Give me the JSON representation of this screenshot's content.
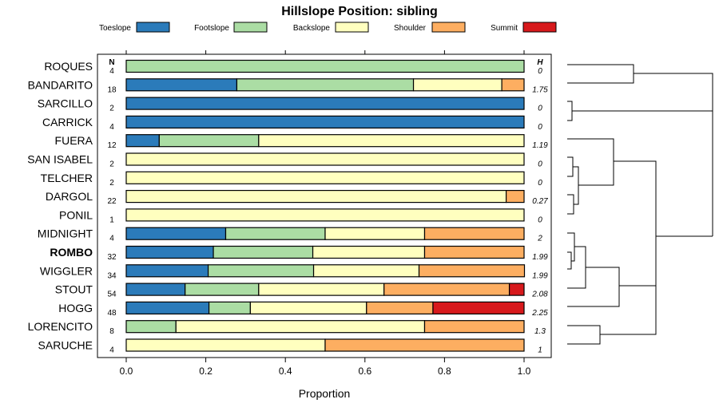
{
  "chart_data": {
    "type": "stacked-horizontal-bar",
    "title": "Hillslope Position: sibling",
    "xlabel": "Proportion",
    "xlim": [
      0,
      1
    ],
    "xticks": [
      "0.0",
      "0.2",
      "0.4",
      "0.6",
      "0.8",
      "1.0"
    ],
    "n_header": "N",
    "h_header": "H",
    "legend": [
      {
        "name": "Toeslope",
        "color": "#2b7bba"
      },
      {
        "name": "Footslope",
        "color": "#abdda4"
      },
      {
        "name": "Backslope",
        "color": "#ffffbf"
      },
      {
        "name": "Shoulder",
        "color": "#fdae61"
      },
      {
        "name": "Summit",
        "color": "#d7191c"
      }
    ],
    "highlight": "ROMBO",
    "rows": [
      {
        "name": "ROQUES",
        "n": "4",
        "h": "0",
        "values": [
          0,
          1,
          0,
          0,
          0
        ]
      },
      {
        "name": "BANDARITO",
        "n": "18",
        "h": "1.75",
        "values": [
          0.278,
          0.444,
          0.222,
          0.056,
          0
        ]
      },
      {
        "name": "SARCILLO",
        "n": "2",
        "h": "0",
        "values": [
          1,
          0,
          0,
          0,
          0
        ]
      },
      {
        "name": "CARRICK",
        "n": "4",
        "h": "0",
        "values": [
          1,
          0,
          0,
          0,
          0
        ]
      },
      {
        "name": "FUERA",
        "n": "12",
        "h": "1.19",
        "values": [
          0.083,
          0.25,
          0.667,
          0,
          0
        ]
      },
      {
        "name": "SAN ISABEL",
        "n": "2",
        "h": "0",
        "values": [
          0,
          0,
          1,
          0,
          0
        ]
      },
      {
        "name": "TELCHER",
        "n": "2",
        "h": "0",
        "values": [
          0,
          0,
          1,
          0,
          0
        ]
      },
      {
        "name": "DARGOL",
        "n": "22",
        "h": "0.27",
        "values": [
          0,
          0,
          0.955,
          0.045,
          0
        ]
      },
      {
        "name": "PONIL",
        "n": "1",
        "h": "0",
        "values": [
          0,
          0,
          1,
          0,
          0
        ]
      },
      {
        "name": "MIDNIGHT",
        "n": "4",
        "h": "2",
        "values": [
          0.25,
          0.25,
          0.25,
          0.25,
          0
        ]
      },
      {
        "name": "ROMBO",
        "n": "32",
        "h": "1.99",
        "values": [
          0.219,
          0.25,
          0.281,
          0.25,
          0
        ]
      },
      {
        "name": "WIGGLER",
        "n": "34",
        "h": "1.99",
        "values": [
          0.206,
          0.265,
          0.265,
          0.265,
          0
        ]
      },
      {
        "name": "STOUT",
        "n": "54",
        "h": "2.08",
        "values": [
          0.148,
          0.185,
          0.315,
          0.315,
          0.037
        ]
      },
      {
        "name": "HOGG",
        "n": "48",
        "h": "2.25",
        "values": [
          0.208,
          0.104,
          0.292,
          0.167,
          0.229
        ]
      },
      {
        "name": "LORENCITO",
        "n": "8",
        "h": "1.3",
        "values": [
          0,
          0.125,
          0.625,
          0.25,
          0
        ]
      },
      {
        "name": "SARUCHE",
        "n": "4",
        "h": "1",
        "values": [
          0,
          0,
          0.5,
          0.5,
          0
        ]
      }
    ]
  }
}
